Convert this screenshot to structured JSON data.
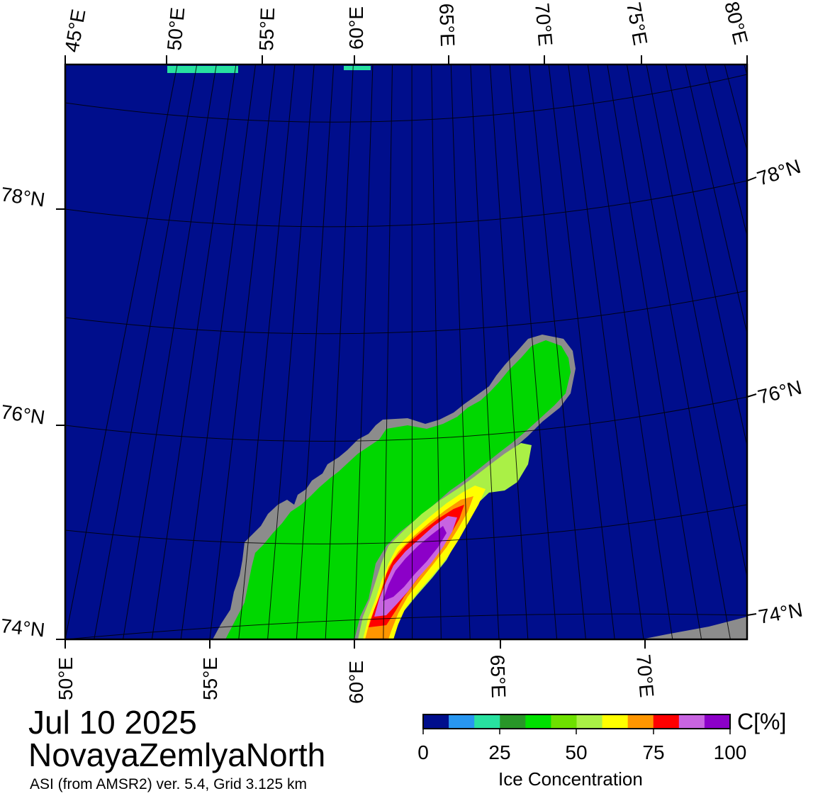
{
  "date_label": "Jul 10 2025",
  "region_label": "NovayaZemlyaNorth",
  "source_label": "ASI (from AMSR2) ver. 5.4,  Grid 3.125 km",
  "colorbar": {
    "unit_label": "C[%]",
    "title": "Ice Concentration",
    "tick_labels": [
      "0",
      "25",
      "50",
      "75",
      "100"
    ],
    "colors": [
      "#000e8c",
      "#2896f0",
      "#28e1a0",
      "#289628",
      "#00e100",
      "#6ee100",
      "#aaf046",
      "#ffff00",
      "#ff9600",
      "#ff0000",
      "#c864e1",
      "#8c00c8"
    ]
  },
  "map": {
    "top_lon_labels": [
      "45°E",
      "50°E",
      "55°E",
      "60°E",
      "65°E",
      "70°E",
      "75°E",
      "80°E"
    ],
    "bottom_lon_labels": [
      "50°E",
      "55°E",
      "60°E",
      "65°E",
      "70°E"
    ],
    "left_lat_labels": [
      "78°N",
      "76°N",
      "74°N"
    ],
    "right_lat_labels": [
      "78°N",
      "76°N",
      "74°N"
    ],
    "colors": {
      "open_water": "#000e8c",
      "land": "#00d700",
      "coast": "#8c8c8c",
      "ice_high": "#8c00c8",
      "ice_mid": "#c864e1",
      "ice_red": "#ff0000",
      "ice_orange": "#ff9600",
      "ice_yellow": "#ffff00",
      "ice_lime": "#aaf046"
    }
  }
}
